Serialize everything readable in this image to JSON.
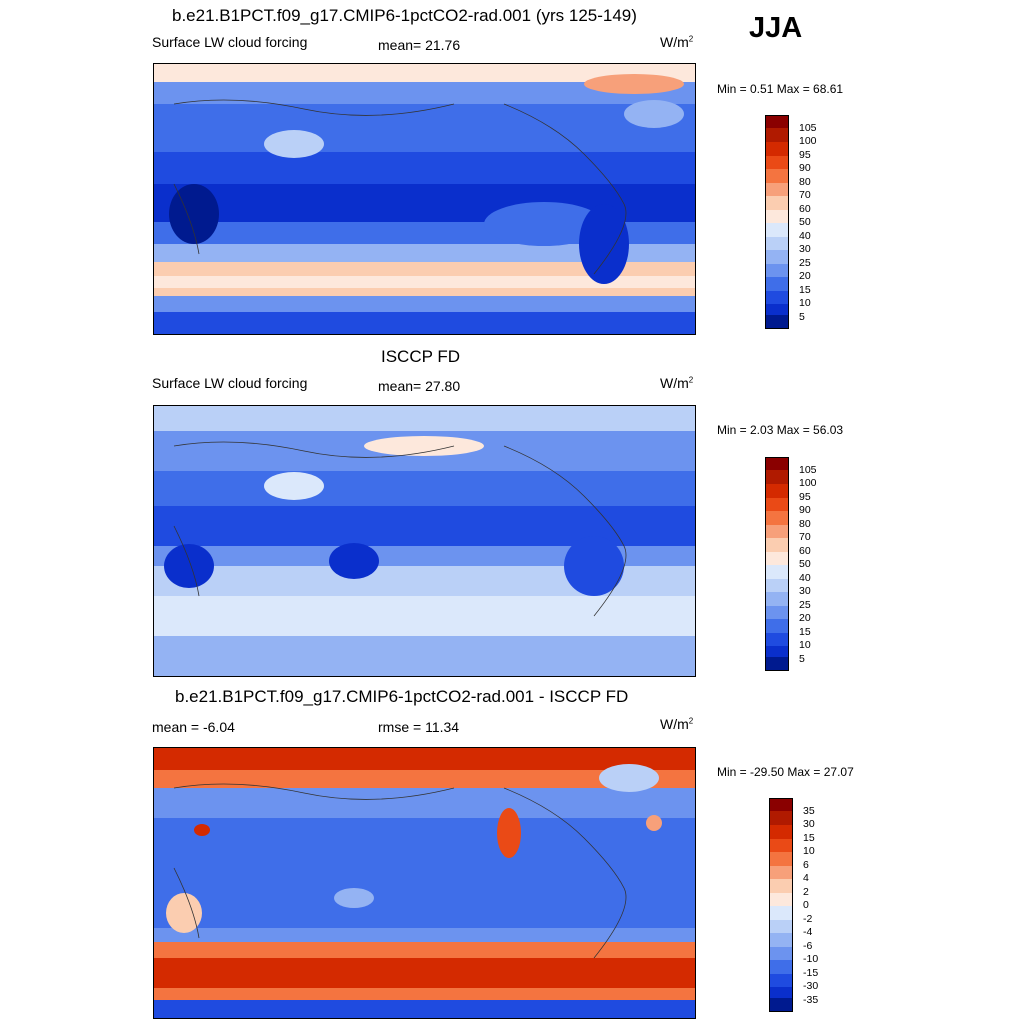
{
  "season": "JJA",
  "units_base": "W/m",
  "units_exp": "2",
  "panel1": {
    "title": "b.e21.B1PCT.f09_g17.CMIP6-1pctCO2-rad.001 (yrs 125-149)",
    "left": "Surface LW cloud forcing",
    "center": "mean=  21.76",
    "minmax": "Min =   0.51 Max =  68.61"
  },
  "panel2": {
    "title": "ISCCP FD",
    "left": "Surface LW cloud forcing",
    "center": "mean=  27.80",
    "minmax": "Min =   2.03 Max =  56.03"
  },
  "panel3": {
    "title": "b.e21.B1PCT.f09_g17.CMIP6-1pctCO2-rad.001 - ISCCP FD",
    "left": "mean =  -6.04",
    "center": "rmse =  11.34",
    "minmax": "Min = -29.50 Max =  27.07"
  },
  "colorbar_abs": {
    "labels": [
      "105",
      "100",
      "95",
      "90",
      "80",
      "70",
      "60",
      "50",
      "40",
      "30",
      "25",
      "20",
      "15",
      "10",
      "5"
    ],
    "colors": [
      "#8a0000",
      "#b01a00",
      "#d42a00",
      "#ea4a16",
      "#f47440",
      "#f7a07a",
      "#fbcdb0",
      "#fde8dc",
      "#dbe8fb",
      "#bad0f7",
      "#94b3f3",
      "#6c93ef",
      "#3f6ee9",
      "#1f4be0",
      "#0a2fcc",
      "#001a8f"
    ]
  },
  "colorbar_diff": {
    "labels": [
      "35",
      "30",
      "15",
      "10",
      "6",
      "4",
      "2",
      "0",
      "-2",
      "-4",
      "-6",
      "-10",
      "-15",
      "-30",
      "-35"
    ],
    "colors": [
      "#8a0000",
      "#b01a00",
      "#d42a00",
      "#ea4a16",
      "#f47440",
      "#f7a07a",
      "#fbcdb0",
      "#fde8dc",
      "#dbe8fb",
      "#bad0f7",
      "#94b3f3",
      "#6c93ef",
      "#3f6ee9",
      "#1f4be0",
      "#0a2fcc",
      "#001a8f"
    ]
  }
}
